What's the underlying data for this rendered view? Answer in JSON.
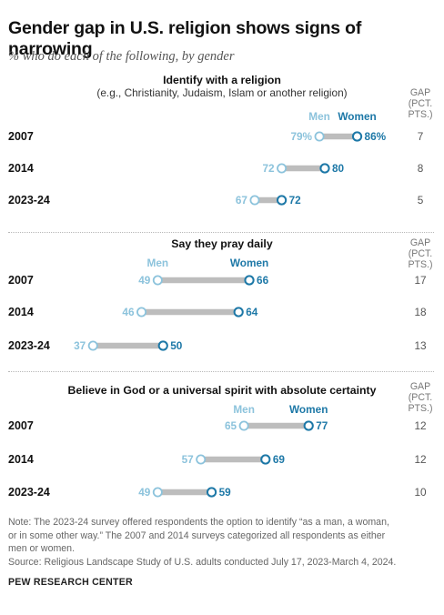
{
  "title": "Gender gap in U.S. religion shows signs of narrowing",
  "subtitle": "% who do each of the following, by gender",
  "gap_header": [
    "GAP",
    "(PCT.",
    "PTS.)"
  ],
  "men_label": "Men",
  "women_label": "Women",
  "colors": {
    "men": "#8cc3dc",
    "women": "#1d78a7",
    "bar": "#bdbdbd",
    "gap": "#555555",
    "year": "#111111"
  },
  "note_lines": [
    "Note: The 2023-24 survey offered respondents the option to identify “as a man, a woman,",
    "or in some other way.” The 2007 and 2014 surveys categorized all respondents as either",
    "men or women.",
    "Source: Religious Landscape Study of U.S. adults conducted July 17, 2023-March 4, 2024."
  ],
  "source_brand": "PEW RESEARCH CENTER",
  "chart_data": [
    {
      "type": "dot",
      "title": "Identify with a religion",
      "subtitle": "(e.g., Christianity, Judaism, Islam or another religion)",
      "categories": [
        "2007",
        "2014",
        "2023-24"
      ],
      "series": [
        {
          "name": "Men",
          "values": [
            79,
            72,
            67
          ]
        },
        {
          "name": "Women",
          "values": [
            86,
            80,
            72
          ]
        }
      ],
      "gap": [
        7,
        8,
        5
      ],
      "value_labels": {
        "Men": [
          "79%",
          "72",
          "67"
        ],
        "Women": [
          "86%",
          "80",
          "72"
        ]
      }
    },
    {
      "type": "dot",
      "title": "Say they pray daily",
      "subtitle": "",
      "categories": [
        "2007",
        "2014",
        "2023-24"
      ],
      "series": [
        {
          "name": "Men",
          "values": [
            49,
            46,
            37
          ]
        },
        {
          "name": "Women",
          "values": [
            66,
            64,
            50
          ]
        }
      ],
      "gap": [
        17,
        18,
        13
      ],
      "value_labels": {
        "Men": [
          "49",
          "46",
          "37"
        ],
        "Women": [
          "66",
          "64",
          "50"
        ]
      }
    },
    {
      "type": "dot",
      "title": "Believe in God or a universal spirit with absolute certainty",
      "subtitle": "",
      "categories": [
        "2007",
        "2014",
        "2023-24"
      ],
      "series": [
        {
          "name": "Men",
          "values": [
            65,
            57,
            49
          ]
        },
        {
          "name": "Women",
          "values": [
            77,
            69,
            59
          ]
        }
      ],
      "gap": [
        12,
        12,
        10
      ],
      "value_labels": {
        "Men": [
          "65",
          "57",
          "49"
        ],
        "Women": [
          "77",
          "69",
          "59"
        ]
      }
    }
  ]
}
